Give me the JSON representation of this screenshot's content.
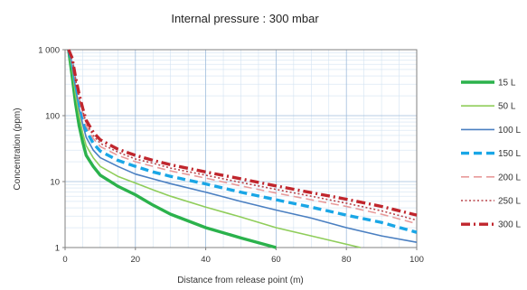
{
  "chart_data": {
    "type": "line",
    "title": "Internal pressure : 300 mbar",
    "xlabel": "Distance from release point (m)",
    "ylabel": "Concentration (ppm)",
    "xlim": [
      0,
      100
    ],
    "ylim": [
      1,
      1000
    ],
    "yscale": "log",
    "grid": true,
    "legend_position": "right",
    "x_ticks": [
      0,
      20,
      40,
      60,
      80,
      100
    ],
    "x_tick_labels": [
      "0",
      "20",
      "40",
      "60",
      "80",
      "100"
    ],
    "y_ticks": [
      1,
      10,
      100,
      1000
    ],
    "y_tick_labels": [
      "1",
      "10",
      "100",
      "1 000"
    ],
    "series": [
      {
        "name": "15 L",
        "color": "#2bb24c",
        "dash": "solid",
        "width": "thick",
        "x": [
          1,
          2,
          3,
          4,
          5,
          6,
          8,
          10,
          15,
          20,
          25,
          30,
          40,
          50,
          60
        ],
        "y": [
          1000,
          400,
          150,
          70,
          40,
          25,
          17,
          12.5,
          8.5,
          6.3,
          4.4,
          3.2,
          2.0,
          1.4,
          1.0
        ]
      },
      {
        "name": "50 L",
        "color": "#8fcd5a",
        "dash": "solid",
        "width": "normal",
        "x": [
          1,
          2,
          3,
          4,
          5,
          6,
          8,
          10,
          15,
          20,
          25,
          30,
          40,
          50,
          60,
          70,
          84
        ],
        "y": [
          1000,
          500,
          200,
          100,
          55,
          35,
          23,
          17,
          12,
          9.5,
          7.5,
          6.0,
          4.1,
          2.9,
          2.0,
          1.5,
          1.0
        ]
      },
      {
        "name": "100 L",
        "color": "#4a7fc1",
        "dash": "solid",
        "width": "normal",
        "x": [
          1,
          2,
          3,
          4,
          5,
          6,
          8,
          10,
          15,
          20,
          25,
          30,
          40,
          50,
          60,
          70,
          80,
          90,
          100
        ],
        "y": [
          1000,
          600,
          260,
          130,
          75,
          47,
          30,
          23,
          17,
          13,
          11,
          9.3,
          6.9,
          5.0,
          3.7,
          2.8,
          2.0,
          1.5,
          1.2
        ]
      },
      {
        "name": "150 L",
        "color": "#19a6e6",
        "dash": "dash",
        "width": "thick",
        "x": [
          1,
          2,
          3,
          4,
          5,
          6,
          8,
          10,
          15,
          20,
          25,
          30,
          40,
          50,
          60,
          70,
          80,
          90,
          100
        ],
        "y": [
          1000,
          650,
          300,
          160,
          95,
          60,
          38,
          29,
          21,
          17,
          14,
          12,
          9.2,
          6.9,
          5.3,
          4.1,
          3.1,
          2.4,
          1.7
        ]
      },
      {
        "name": "200 L",
        "color": "#e89a9a",
        "dash": "dash",
        "width": "normal",
        "x": [
          1,
          2,
          3,
          4,
          5,
          6,
          8,
          10,
          15,
          20,
          25,
          30,
          40,
          50,
          60,
          70,
          80,
          90,
          100
        ],
        "y": [
          1000,
          700,
          330,
          180,
          110,
          70,
          45,
          34,
          25,
          20,
          17,
          14.5,
          11.3,
          8.6,
          6.7,
          5.3,
          4.2,
          3.2,
          2.3
        ]
      },
      {
        "name": "250 L",
        "color": "#b8434a",
        "dash": "dot",
        "width": "normal",
        "x": [
          1,
          2,
          3,
          4,
          5,
          6,
          8,
          10,
          15,
          20,
          25,
          30,
          40,
          50,
          60,
          70,
          80,
          90,
          100
        ],
        "y": [
          1000,
          720,
          350,
          190,
          120,
          78,
          50,
          38,
          28,
          22,
          19,
          16,
          12.5,
          9.7,
          7.6,
          6.0,
          4.7,
          3.6,
          2.6
        ]
      },
      {
        "name": "300 L",
        "color": "#c0262d",
        "dash": "dashdot",
        "width": "thick",
        "x": [
          1,
          2,
          3,
          4,
          5,
          6,
          8,
          10,
          15,
          20,
          25,
          30,
          40,
          50,
          60,
          70,
          80,
          90,
          100
        ],
        "y": [
          1000,
          750,
          380,
          210,
          130,
          85,
          56,
          43,
          31,
          25,
          21,
          18,
          14,
          11,
          8.6,
          6.8,
          5.4,
          4.2,
          3.1
        ]
      }
    ]
  }
}
